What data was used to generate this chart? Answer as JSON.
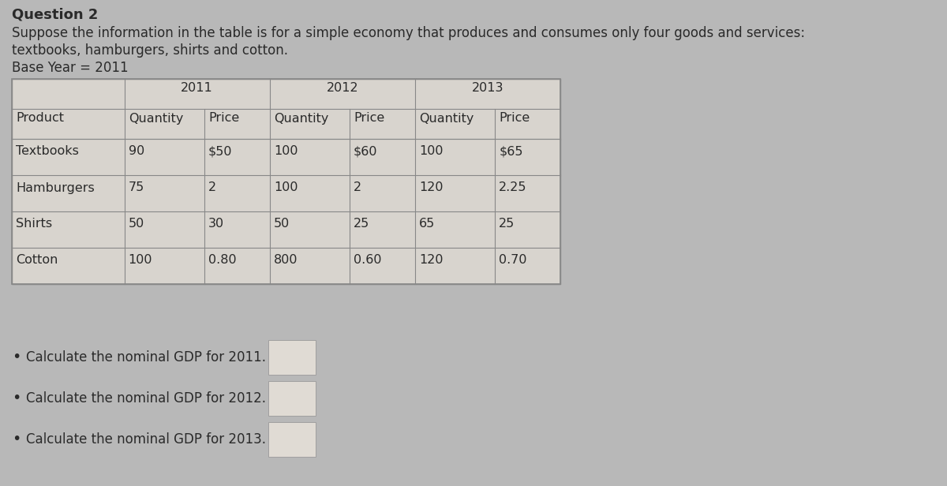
{
  "title": "Question 2",
  "subtitle_line1": "Suppose the information in the table is for a simple economy that produces and consumes only four goods and services:",
  "subtitle_line2": "textbooks, hamburgers, shirts and cotton.",
  "base_year_text": "Base Year = 2011",
  "bg_color": "#b8b8b8",
  "table_bg": "#d8d4ce",
  "table_border": "#888888",
  "answer_box_color": "#e0dbd4",
  "text_color": "#2a2a2a",
  "title_fontsize": 13,
  "body_fontsize": 12,
  "table_fontsize": 11.5,
  "col_headers": [
    "Product",
    "Quantity",
    "Price",
    "Quantity",
    "Price",
    "Quantity",
    "Price"
  ],
  "year_headers": [
    "2011",
    "2012",
    "2013"
  ],
  "rows": [
    [
      "Textbooks",
      "90",
      "$50",
      "100",
      "$60",
      "100",
      "$65"
    ],
    [
      "Hamburgers",
      "75",
      "2",
      "100",
      "2",
      "120",
      "2.25"
    ],
    [
      "Shirts",
      "50",
      "30",
      "50",
      "25",
      "65",
      "25"
    ],
    [
      "Cotton",
      "100",
      "0.80",
      "800",
      "0.60",
      "120",
      "0.70"
    ]
  ],
  "bullet_points": [
    "Calculate the nominal GDP for 2011.",
    "Calculate the nominal GDP for 2012.",
    "Calculate the nominal GDP for 2013."
  ]
}
